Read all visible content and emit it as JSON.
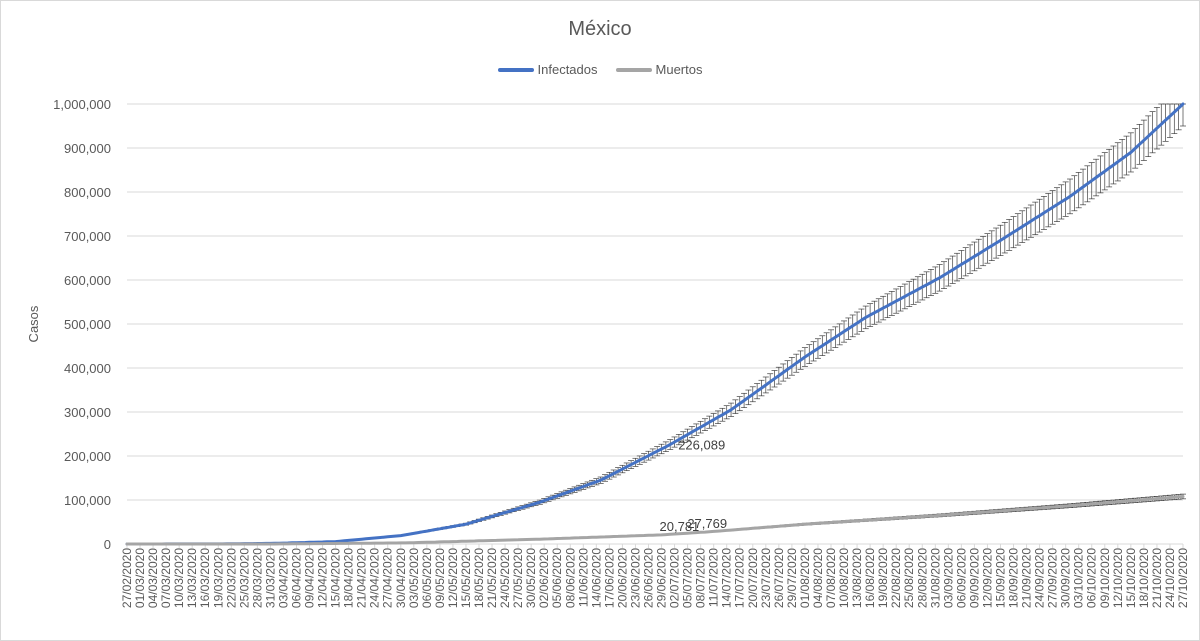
{
  "chart_data": {
    "type": "line",
    "title": "México",
    "ylabel": "Casos",
    "xlabel": "",
    "ylim": [
      0,
      1000000
    ],
    "yticks": [
      0,
      100000,
      200000,
      300000,
      400000,
      500000,
      600000,
      700000,
      800000,
      900000,
      1000000
    ],
    "ytick_labels": [
      "0",
      "100,000",
      "200,000",
      "300,000",
      "400,000",
      "500,000",
      "600,000",
      "700,000",
      "800,000",
      "900,000",
      "1,000,000"
    ],
    "grid": true,
    "legend_position": "top",
    "x_start": "27/02/2020",
    "x_end": "27/10/2020",
    "x_tick_step_days": 3,
    "x_tick_labels": [
      "27/02/2020",
      "01/03/2020",
      "04/03/2020",
      "07/03/2020",
      "10/03/2020",
      "13/03/2020",
      "16/03/2020",
      "19/03/2020",
      "22/03/2020",
      "25/03/2020",
      "28/03/2020",
      "31/03/2020",
      "03/04/2020",
      "06/04/2020",
      "09/04/2020",
      "12/04/2020",
      "15/04/2020",
      "18/04/2020",
      "21/04/2020",
      "24/04/2020",
      "27/04/2020",
      "30/04/2020",
      "03/05/2020",
      "06/05/2020",
      "09/05/2020",
      "12/05/2020",
      "15/05/2020",
      "18/05/2020",
      "21/05/2020",
      "24/05/2020",
      "27/05/2020",
      "30/05/2020",
      "02/06/2020",
      "05/06/2020",
      "08/06/2020",
      "11/06/2020",
      "14/06/2020",
      "17/06/2020",
      "20/06/2020",
      "23/06/2020",
      "26/06/2020",
      "29/06/2020",
      "02/07/2020",
      "05/07/2020",
      "08/07/2020",
      "11/07/2020",
      "14/07/2020",
      "17/07/2020",
      "20/07/2020",
      "23/07/2020",
      "26/07/2020",
      "29/07/2020",
      "01/08/2020",
      "04/08/2020",
      "07/08/2020",
      "10/08/2020",
      "13/08/2020",
      "16/08/2020",
      "19/08/2020",
      "22/08/2020",
      "25/08/2020",
      "28/08/2020",
      "31/08/2020",
      "03/09/2020",
      "06/09/2020",
      "09/09/2020",
      "12/09/2020",
      "15/09/2020",
      "18/09/2020",
      "21/09/2020",
      "24/09/2020",
      "27/09/2020",
      "30/09/2020",
      "03/10/2020",
      "06/10/2020",
      "09/10/2020",
      "12/10/2020",
      "15/10/2020",
      "18/10/2020",
      "21/10/2020",
      "24/10/2020",
      "27/10/2020"
    ],
    "error_bar_fraction": 0.05,
    "series": [
      {
        "name": "Infectados",
        "color": "#4472c4",
        "points": [
          [
            "27/02/2020",
            0
          ],
          [
            "20/03/2020",
            300
          ],
          [
            "01/04/2020",
            1500
          ],
          [
            "15/04/2020",
            5500
          ],
          [
            "30/04/2020",
            19000
          ],
          [
            "15/05/2020",
            45000
          ],
          [
            "01/06/2020",
            95000
          ],
          [
            "15/06/2020",
            145000
          ],
          [
            "01/07/2020",
            226089
          ],
          [
            "15/07/2020",
            305000
          ],
          [
            "01/08/2020",
            425000
          ],
          [
            "15/08/2020",
            515000
          ],
          [
            "01/09/2020",
            605000
          ],
          [
            "15/09/2020",
            690000
          ],
          [
            "01/10/2020",
            790000
          ],
          [
            "15/10/2020",
            890000
          ],
          [
            "27/10/2020",
            1000000
          ]
        ]
      },
      {
        "name": "Muertos",
        "color": "#a5a5a5",
        "points": [
          [
            "27/02/2020",
            0
          ],
          [
            "01/04/2020",
            100
          ],
          [
            "01/05/2020",
            2500
          ],
          [
            "01/06/2020",
            11000
          ],
          [
            "29/06/2020",
            20781
          ],
          [
            "10/07/2020",
            27769
          ],
          [
            "01/08/2020",
            45000
          ],
          [
            "01/09/2020",
            65000
          ],
          [
            "01/10/2020",
            87000
          ],
          [
            "27/10/2020",
            108000
          ]
        ]
      }
    ],
    "annotations": [
      {
        "text": "226,089",
        "x": "01/07/2020",
        "y": 226089,
        "series": "Infectados"
      },
      {
        "text": "20,781",
        "x": "29/06/2020",
        "y": 20781,
        "series": "Muertos"
      },
      {
        "text": "27,769",
        "x": "10/07/2020",
        "y": 27769,
        "series": "Muertos"
      }
    ]
  }
}
